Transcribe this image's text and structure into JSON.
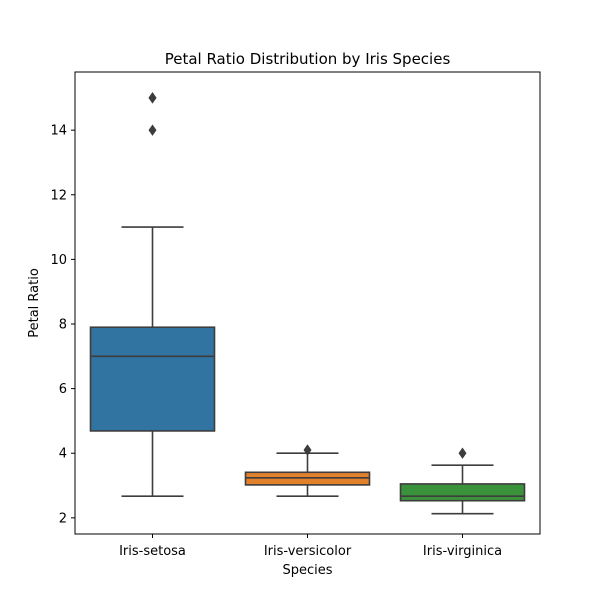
{
  "chart_data": {
    "type": "box",
    "title": "Petal Ratio Distribution by Iris Species",
    "xlabel": "Species",
    "ylabel": "Petal Ratio",
    "ylim": [
      1.5,
      15.8
    ],
    "yticks": [
      2,
      4,
      6,
      8,
      10,
      12,
      14
    ],
    "grid": false,
    "categories": [
      "Iris-setosa",
      "Iris-versicolor",
      "Iris-virginica"
    ],
    "boxes": [
      {
        "category": "Iris-setosa",
        "whisker_low": 2.67,
        "q1": 4.69,
        "median": 7.0,
        "q3": 7.9,
        "whisker_high": 11.0,
        "outliers": [
          14.0,
          15.0,
          15.0
        ],
        "color": "#3274a1"
      },
      {
        "category": "Iris-versicolor",
        "whisker_low": 2.67,
        "q1": 3.02,
        "median": 3.24,
        "q3": 3.41,
        "whisker_high": 4.0,
        "outliers": [
          4.1
        ],
        "color": "#e1812c"
      },
      {
        "category": "Iris-virginica",
        "whisker_low": 2.13,
        "q1": 2.53,
        "median": 2.67,
        "q3": 3.05,
        "whisker_high": 3.63,
        "outliers": [
          4.0
        ],
        "color": "#3a923a"
      }
    ]
  }
}
